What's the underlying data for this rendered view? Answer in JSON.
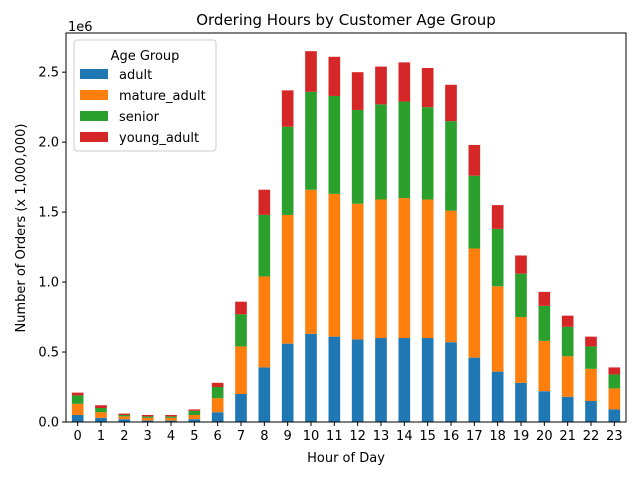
{
  "chart_data": {
    "type": "bar",
    "stacked": true,
    "title": "Ordering Hours by Customer Age Group",
    "xlabel": "Hour of Day",
    "ylabel": "Number of Orders (x 1,000,000)",
    "y_offset_label": "1e6",
    "ylim": [
      0,
      2.78
    ],
    "yticks": [
      "0.0",
      "0.5",
      "1.0",
      "1.5",
      "2.0",
      "2.5"
    ],
    "ytick_values": [
      0,
      0.5,
      1.0,
      1.5,
      2.0,
      2.5
    ],
    "categories": [
      "0",
      "1",
      "2",
      "3",
      "4",
      "5",
      "6",
      "7",
      "8",
      "9",
      "10",
      "11",
      "12",
      "13",
      "14",
      "15",
      "16",
      "17",
      "18",
      "19",
      "20",
      "21",
      "22",
      "23"
    ],
    "legend": {
      "title": "Age Group",
      "placement": "upper-left"
    },
    "grid": false,
    "series": [
      {
        "name": "adult",
        "color": "#1f77b4",
        "values": [
          0.05,
          0.03,
          0.02,
          0.01,
          0.01,
          0.02,
          0.07,
          0.2,
          0.39,
          0.56,
          0.63,
          0.61,
          0.59,
          0.6,
          0.6,
          0.6,
          0.57,
          0.46,
          0.36,
          0.28,
          0.22,
          0.18,
          0.15,
          0.09
        ]
      },
      {
        "name": "mature_adult",
        "color": "#ff7f0e",
        "values": [
          0.08,
          0.04,
          0.02,
          0.02,
          0.02,
          0.03,
          0.1,
          0.34,
          0.65,
          0.92,
          1.03,
          1.02,
          0.97,
          0.99,
          1.0,
          0.99,
          0.94,
          0.78,
          0.61,
          0.47,
          0.36,
          0.29,
          0.23,
          0.15
        ]
      },
      {
        "name": "senior",
        "color": "#2ca02c",
        "values": [
          0.06,
          0.03,
          0.01,
          0.01,
          0.01,
          0.03,
          0.08,
          0.23,
          0.44,
          0.63,
          0.7,
          0.7,
          0.67,
          0.68,
          0.69,
          0.66,
          0.64,
          0.52,
          0.41,
          0.31,
          0.25,
          0.21,
          0.16,
          0.1
        ]
      },
      {
        "name": "young_adult",
        "color": "#d62728",
        "values": [
          0.02,
          0.02,
          0.01,
          0.01,
          0.01,
          0.01,
          0.03,
          0.09,
          0.18,
          0.26,
          0.29,
          0.28,
          0.27,
          0.27,
          0.28,
          0.28,
          0.26,
          0.22,
          0.17,
          0.13,
          0.1,
          0.08,
          0.07,
          0.05
        ]
      }
    ]
  }
}
